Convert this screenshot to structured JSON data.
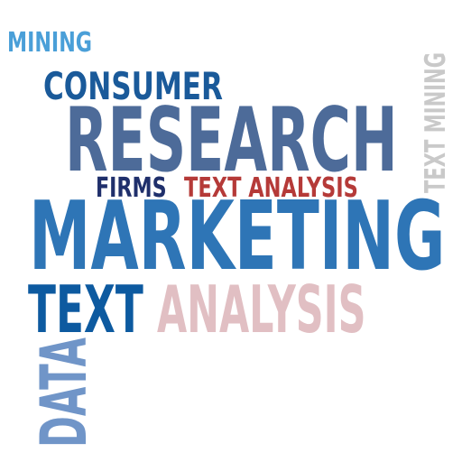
{
  "words": {
    "mining": {
      "text": "MINING",
      "color": "#4a9fd8"
    },
    "consumer": {
      "text": "CONSUMER",
      "color": "#1a5a9a"
    },
    "research": {
      "text": "RESEARCH",
      "color": "#4d6b99"
    },
    "firms": {
      "text": "FIRMS",
      "color": "#1f2f6b"
    },
    "text_analysis": {
      "text": "TEXT ANALYSIS",
      "color": "#b53a38"
    },
    "marketing": {
      "text": "MARKETING",
      "color": "#2e75b6"
    },
    "text": {
      "text": "TEXT",
      "color": "#0d5aa0"
    },
    "analysis": {
      "text": "ANALYSIS",
      "color": "#e1bfc3"
    },
    "data": {
      "text": "DATA",
      "color": "#7095c8"
    },
    "text_mining": {
      "text": "TEXT MINING",
      "color": "#c9c9c9"
    }
  }
}
